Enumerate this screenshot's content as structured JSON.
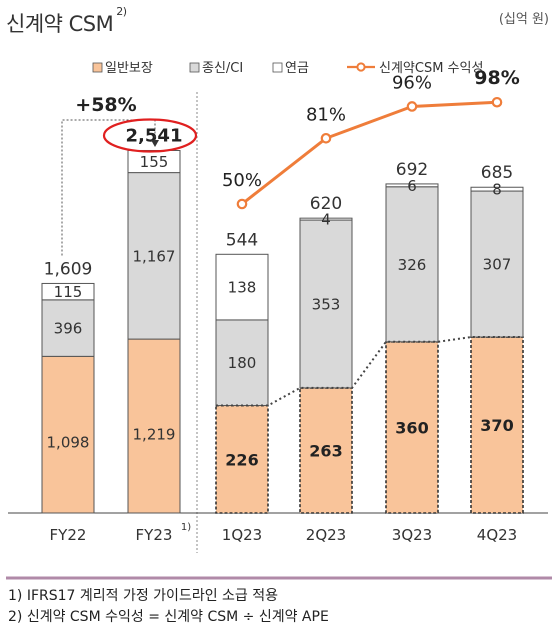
{
  "header": {
    "title": "신계약 CSM",
    "title_note": "2)",
    "unit": "(십억 원)"
  },
  "legend": {
    "items": [
      {
        "label": "일반보장",
        "color": "#f9c49a"
      },
      {
        "label": "종신/CI",
        "color": "#d9d9d9"
      },
      {
        "label": "연금",
        "color": "#ffffff"
      },
      {
        "label": "신계약CSM 수익성",
        "color": "#ef7d3a"
      }
    ]
  },
  "chart_data": {
    "type": "bar",
    "stacked": true,
    "categories": [
      "FY22",
      "FY23",
      "1Q23",
      "2Q23",
      "3Q23",
      "4Q23"
    ],
    "category_notes": [
      "",
      "1)",
      "",
      "",
      "",
      ""
    ],
    "series": [
      {
        "name": "일반보장",
        "values": [
          1098,
          1219,
          226,
          263,
          360,
          370
        ],
        "labels": [
          "1,098",
          "1,219",
          "226",
          "263",
          "360",
          "370"
        ],
        "color": "#f9c49a"
      },
      {
        "name": "종신/CI",
        "values": [
          396,
          1167,
          180,
          353,
          326,
          307
        ],
        "labels": [
          "396",
          "1,167",
          "180",
          "353",
          "326",
          "307"
        ],
        "color": "#d9d9d9"
      },
      {
        "name": "연금",
        "values": [
          115,
          155,
          138,
          4,
          6,
          8
        ],
        "labels": [
          "115",
          "155",
          "138",
          "4",
          "6",
          "8"
        ],
        "color": "#ffffff"
      }
    ],
    "totals": [
      1609,
      2541,
      544,
      620,
      692,
      685
    ],
    "total_labels": [
      "1,609",
      "2,541",
      "544",
      "620",
      "692",
      "685"
    ],
    "annual_scale_max": 3000,
    "quarterly_scale_max": 900,
    "line": {
      "name": "신계약CSM 수익성",
      "categories": [
        "1Q23",
        "2Q23",
        "3Q23",
        "4Q23"
      ],
      "values": [
        50,
        81,
        96,
        98
      ],
      "labels": [
        "50%",
        "81%",
        "96%",
        "98%"
      ],
      "color": "#ef7d3a"
    },
    "growth_annotation": "+58%",
    "highlighted_total": "2,541",
    "highlight_color": "#e02020"
  },
  "footnotes": [
    "1) IFRS17 계리적 가정 가이드라인 소급 적용",
    "2) 신계약 CSM 수익성 = 신계약 CSM ÷ 신계약 APE"
  ]
}
